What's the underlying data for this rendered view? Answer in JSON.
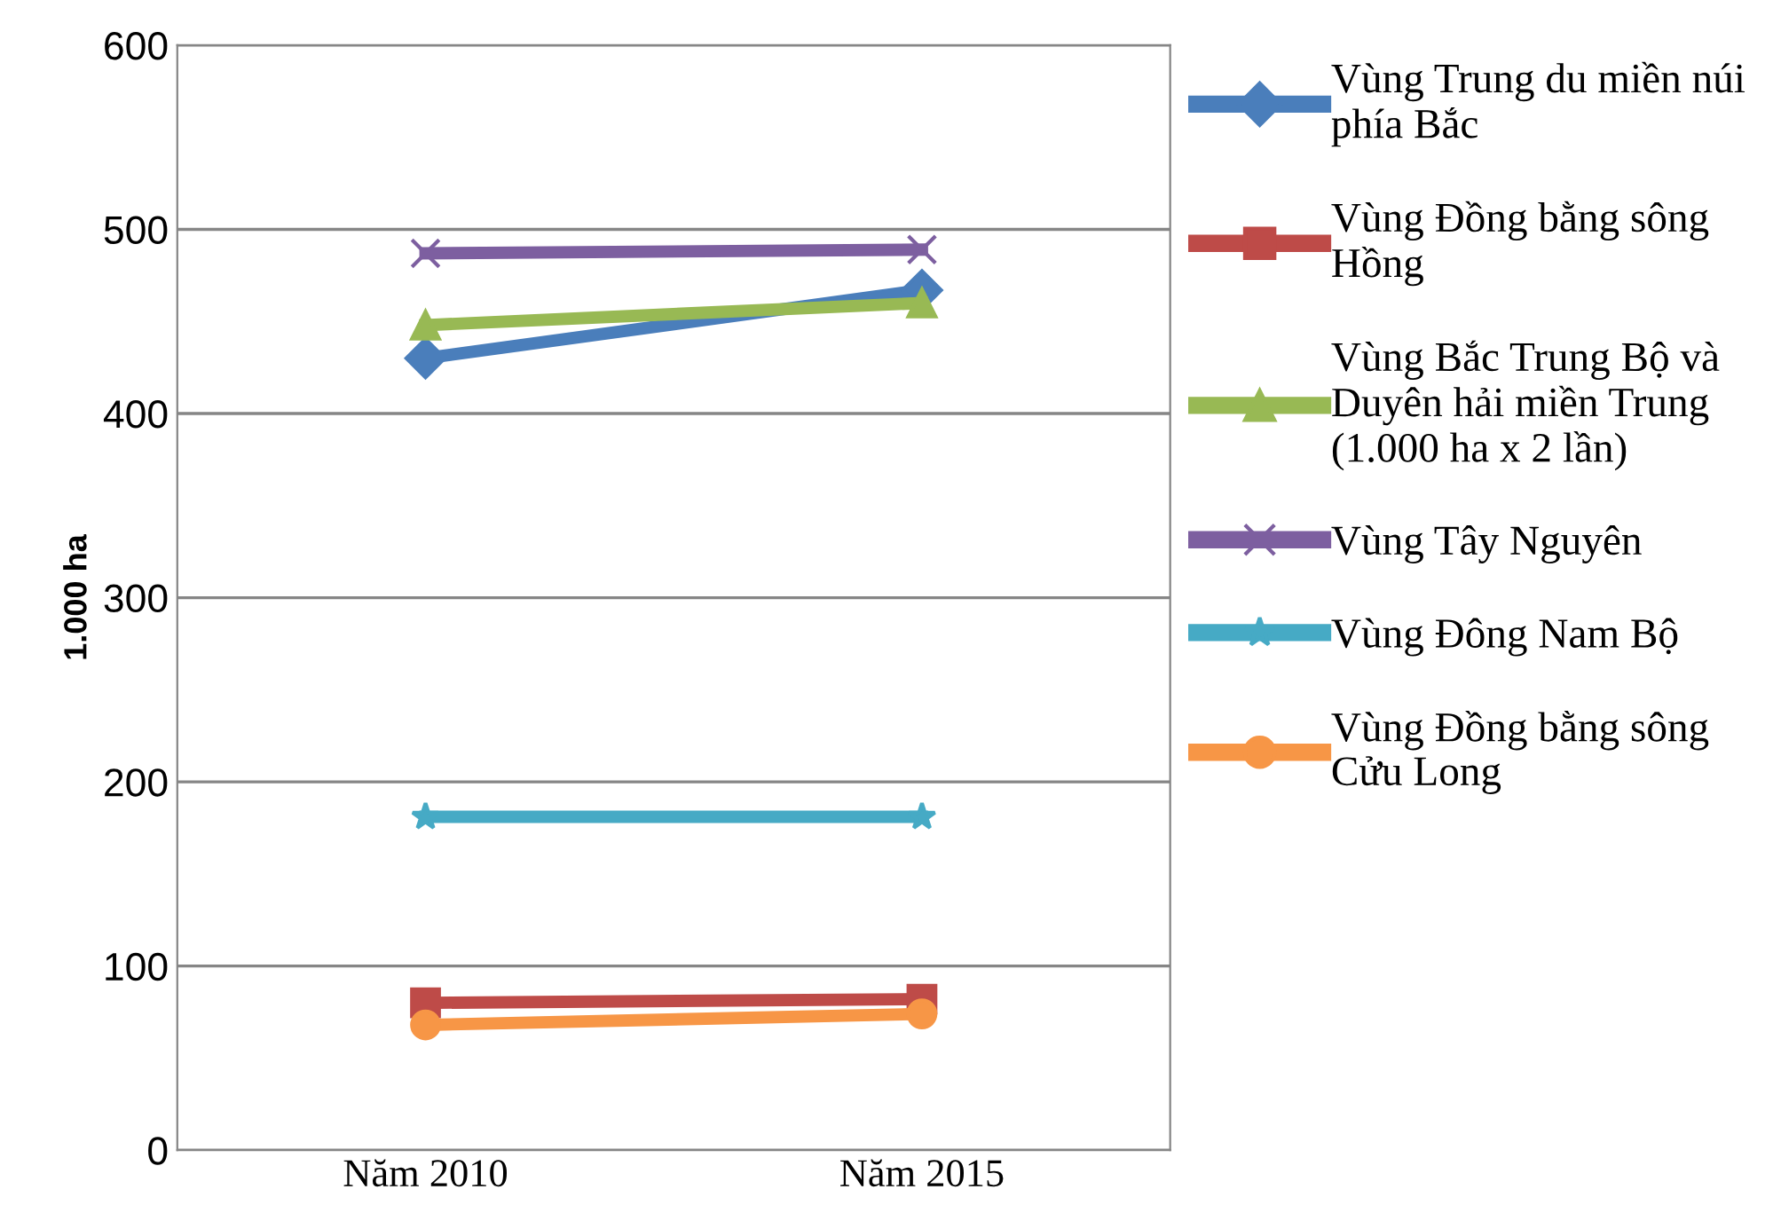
{
  "chart_data": {
    "type": "line",
    "ylabel": "1.000 ha",
    "categories": [
      "Năm 2010",
      "Năm 2015"
    ],
    "ylim": [
      0,
      600
    ],
    "yticks": [
      0,
      100,
      200,
      300,
      400,
      500,
      600
    ],
    "grid": "y",
    "legend": "right",
    "series": [
      {
        "name": "Vùng Trung du miền núi\nphía Bắc",
        "color": "#4a7ebb",
        "marker": "diamond",
        "values": [
          430,
          467
        ]
      },
      {
        "name": "Vùng Đồng bằng sông\nHồng",
        "color": "#be4b48",
        "marker": "square",
        "values": [
          80,
          82
        ]
      },
      {
        "name": "Vùng Bắc Trung Bộ và\nDuyên hải miền Trung\n(1.000 ha x 2 lần)",
        "color": "#98b954",
        "marker": "triangle",
        "values": [
          448,
          460
        ]
      },
      {
        "name": "Vùng Tây Nguyên",
        "color": "#7d5fa0",
        "marker": "cross",
        "values": [
          487,
          489
        ]
      },
      {
        "name": "Vùng Đông Nam Bộ",
        "color": "#46aac5",
        "marker": "star",
        "values": [
          181,
          181
        ]
      },
      {
        "name": "Vùng Đồng bằng sông\nCửu Long",
        "color": "#f79646",
        "marker": "circle",
        "values": [
          68,
          74
        ]
      }
    ]
  }
}
